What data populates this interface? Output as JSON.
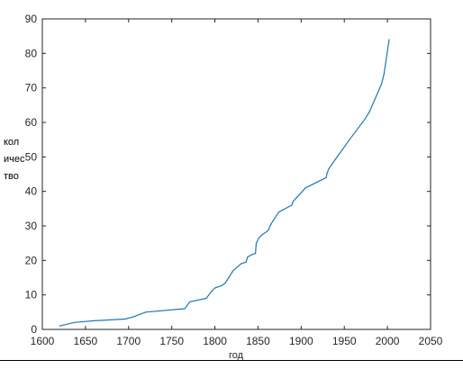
{
  "chart_data": {
    "type": "line",
    "title": "",
    "xlabel": "год",
    "ylabel_lines": [
      "кол",
      "ичес",
      "тво"
    ],
    "xlim": [
      1600,
      2050
    ],
    "ylim": [
      0,
      90
    ],
    "xticks": [
      1600,
      1650,
      1700,
      1750,
      1800,
      1850,
      1900,
      1950,
      2000,
      2050
    ],
    "yticks": [
      0,
      10,
      20,
      30,
      40,
      50,
      60,
      70,
      80,
      90
    ],
    "grid": false,
    "line_color": "#1f77b4",
    "series": [
      {
        "x": [
          1620,
          1637,
          1660,
          1696,
          1705,
          1720,
          1765,
          1771,
          1790,
          1796,
          1800,
          1808,
          1812,
          1816,
          1821,
          1827,
          1830,
          1836,
          1838,
          1843,
          1847,
          1848,
          1851,
          1855,
          1860,
          1862,
          1865,
          1870,
          1874,
          1889,
          1891,
          1894,
          1905,
          1929,
          1930,
          1932,
          1936,
          1956,
          1974,
          1979,
          1993,
          1996,
          2002
        ],
        "y": [
          1,
          2,
          2.5,
          3,
          3.6,
          5,
          6,
          8,
          9,
          11,
          12,
          12.7,
          13.4,
          15,
          17,
          18.3,
          19,
          19.5,
          21,
          21.7,
          22,
          25,
          26.5,
          27.5,
          28.3,
          28.8,
          30.5,
          32.5,
          34,
          36,
          37.2,
          38,
          41,
          44,
          45.3,
          46.5,
          48,
          55,
          61,
          63,
          71,
          74,
          84
        ]
      }
    ]
  }
}
